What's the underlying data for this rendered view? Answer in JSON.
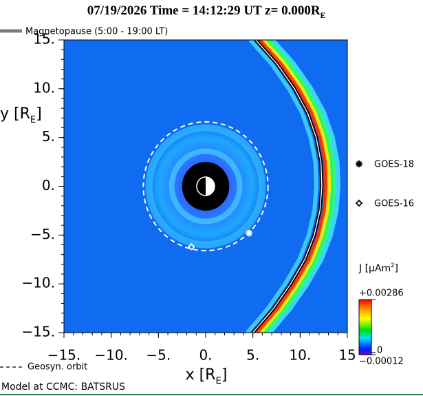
{
  "chart_data": {
    "type": "field",
    "title": [
      {
        "text": "07/19/2026  Time = 14:12:29 UT  "
      },
      {
        "text": "z= 0.000R"
      },
      {
        "text": "E",
        "sub": true
      }
    ],
    "xlabel": [
      {
        "text": "x [R"
      },
      {
        "text": "E",
        "sub": true
      },
      {
        "text": "]"
      }
    ],
    "ylabel": [
      {
        "text": "y [R"
      },
      {
        "text": "E",
        "sub": true
      },
      {
        "text": "]"
      }
    ],
    "xlim": [
      -15,
      15
    ],
    "ylim": [
      -15,
      15
    ],
    "xticks": [
      {
        "value": -15,
        "label": "−15."
      },
      {
        "value": -10,
        "label": "−10."
      },
      {
        "value": -5,
        "label": "−5."
      },
      {
        "value": 0,
        "label": "0."
      },
      {
        "value": 5,
        "label": "5."
      },
      {
        "value": 10,
        "label": "10."
      },
      15
    ],
    "yticks": [
      {
        "value": 15,
        "label": "15."
      },
      {
        "value": 10,
        "label": "10."
      },
      {
        "value": 5,
        "label": "5."
      },
      {
        "value": 0,
        "label": "0."
      },
      {
        "value": -5,
        "label": "−5."
      },
      {
        "value": -10,
        "label": "−10."
      },
      {
        "value": -15,
        "label": "−15."
      }
    ],
    "earth_radius": 2.5,
    "magnetopause": {
      "name": "Magnetopause (5:00 - 19:00 LT)",
      "color": "#000000",
      "x": [
        5.3,
        7.6,
        9.4,
        10.8,
        11.7,
        12.2,
        12.3,
        12.1,
        11.5,
        10.5,
        9.0,
        7.2,
        5.0
      ],
      "y": [
        15,
        12.5,
        10,
        7.5,
        5,
        2.5,
        0,
        -2.5,
        -5,
        -7.5,
        -10,
        -12.5,
        -15
      ]
    },
    "geosync_orbit": {
      "name": "Geosyn. orbit",
      "radius": 6.6,
      "color": "#ffffff"
    },
    "satellites": [
      {
        "name": "GOES-18",
        "marker": "star",
        "x": 4.6,
        "y": -4.8
      },
      {
        "name": "GOES-16",
        "marker": "diamond",
        "x": -1.5,
        "y": -6.2
      }
    ],
    "colorbar": {
      "label": [
        {
          "text": "J ["
        },
        {
          "text": "μA"
        },
        {
          "text": "m"
        },
        {
          "text": "2",
          "sup": true
        },
        {
          "text": "]"
        }
      ],
      "clim": [
        -0.00012,
        0.00286
      ],
      "ticks": [
        {
          "value": 0.00286,
          "label": "+0.00286"
        },
        0,
        {
          "value": -0.00012,
          "label": "−0.00012"
        }
      ]
    },
    "footer": "Model at CCMC: BATSRUS"
  }
}
